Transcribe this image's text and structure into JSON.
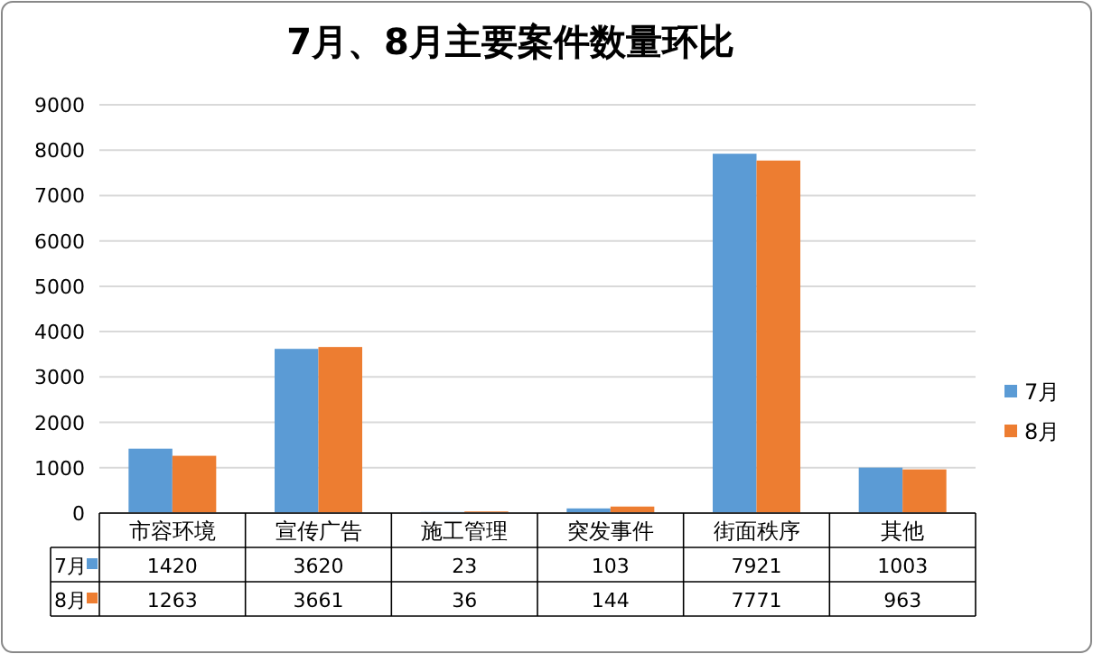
{
  "chart_data": {
    "type": "bar",
    "title": "7月、8月主要案件数量环比",
    "categories": [
      "市容环境",
      "宣传广告",
      "施工管理",
      "突发事件",
      "街面秩序",
      "其他"
    ],
    "series": [
      {
        "name": "7月",
        "color": "#5b9bd5",
        "values": [
          1420,
          3620,
          23,
          103,
          7921,
          1003
        ]
      },
      {
        "name": "8月",
        "color": "#ed7d31",
        "values": [
          1263,
          3661,
          36,
          144,
          7771,
          963
        ]
      }
    ],
    "ylim": [
      0,
      9000
    ],
    "yticks": [
      0,
      1000,
      2000,
      3000,
      4000,
      5000,
      6000,
      7000,
      8000,
      9000
    ],
    "grid": "y",
    "legend": "right",
    "data_labels": true
  }
}
